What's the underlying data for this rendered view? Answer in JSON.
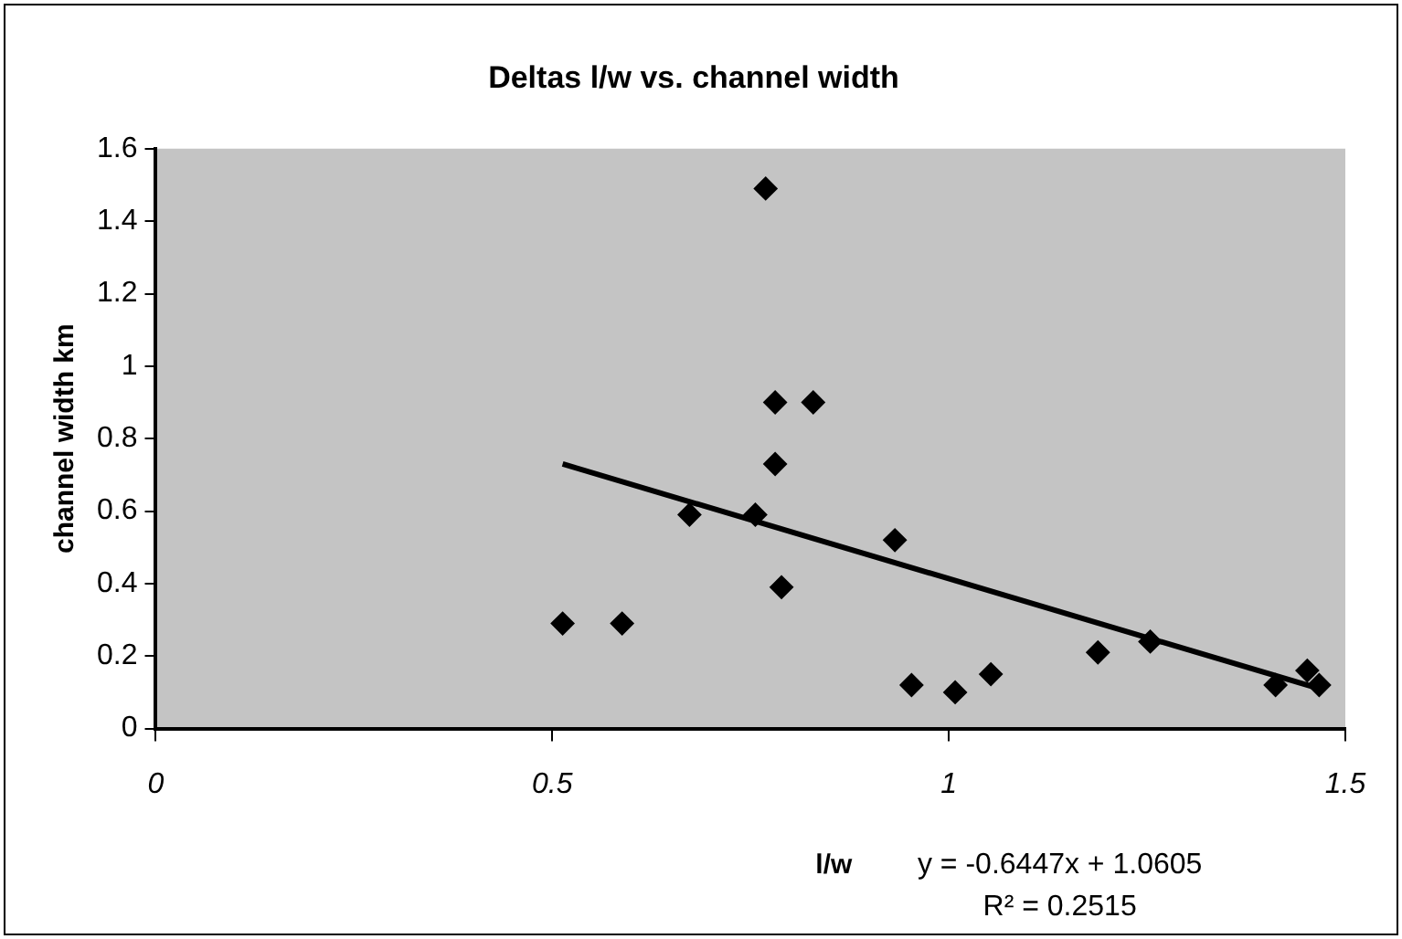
{
  "chart_data": {
    "type": "scatter",
    "title": "Deltas l/w vs. channel width",
    "xlabel": "l/w",
    "ylabel": "channel width km",
    "xlim": [
      0,
      1.5
    ],
    "xticks": [
      0,
      0.5,
      1,
      1.5
    ],
    "ylim": [
      0,
      1.6
    ],
    "yticks": [
      0,
      0.2,
      0.4,
      0.6,
      0.8,
      1,
      1.2,
      1.4,
      1.6
    ],
    "grid": false,
    "legend": false,
    "marker": "diamond",
    "annotations": [
      "y = -0.6447x + 1.0605",
      "R² = 0.2515"
    ],
    "series": [
      {
        "color": "#000000",
        "x": [
          0.513,
          0.588,
          0.673,
          0.756,
          0.781,
          0.781,
          0.829,
          0.789,
          0.769,
          0.932,
          0.953,
          1.008,
          1.053,
          1.188,
          1.254,
          1.412,
          1.452,
          1.467
        ],
        "values": [
          0.29,
          0.29,
          0.59,
          0.59,
          0.73,
          0.9,
          0.9,
          0.39,
          1.49,
          0.52,
          0.12,
          0.1,
          0.15,
          0.21,
          0.24,
          0.12,
          0.16,
          0.12
        ]
      },
      {
        "type": "line",
        "color": "#000000",
        "line_style": "solid",
        "marker": "none",
        "x": [
          0.513,
          1.467
        ],
        "values": [
          0.73,
          0.11
        ]
      }
    ]
  }
}
